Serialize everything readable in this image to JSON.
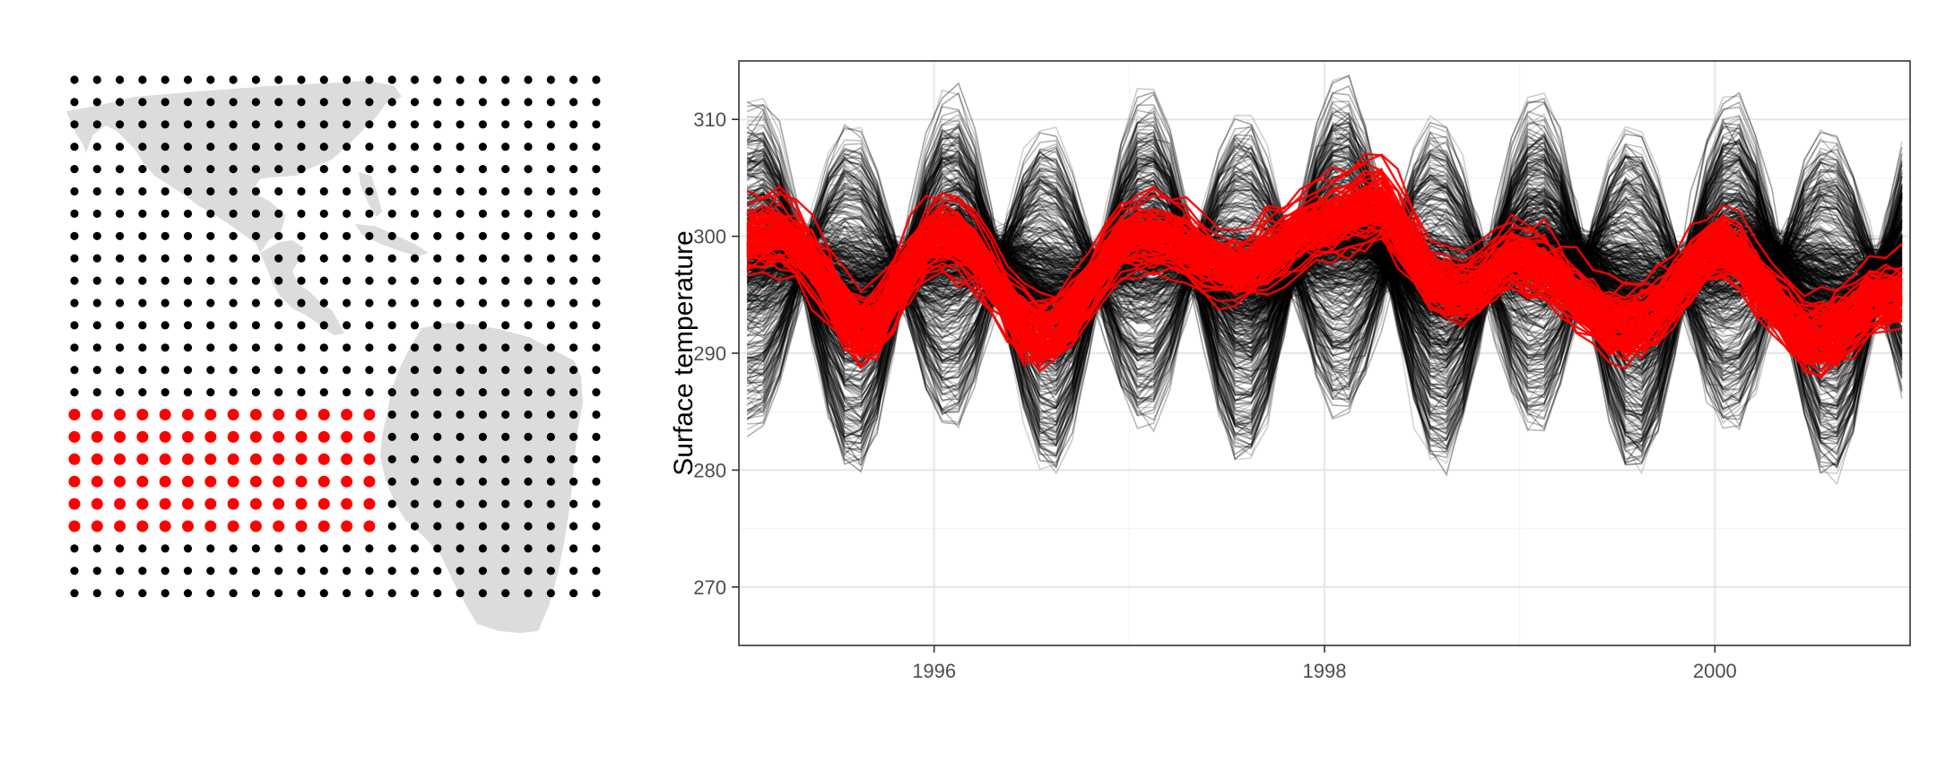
{
  "colors": {
    "background_series": "#000000",
    "highlight_series": "#ff0000",
    "land": "#dcdcdc",
    "grid": "#ebebeb",
    "panel_border": "#333333"
  },
  "chart_data": [
    {
      "type": "scatter",
      "description_role": "spatial grid of locations over the Americas",
      "grid_columns": 24,
      "grid_rows": 24,
      "highlight_region": {
        "col_range": [
          1,
          14
        ],
        "row_range": [
          15,
          20
        ]
      },
      "series": [
        {
          "role": "all-locations",
          "color": "#000000"
        },
        {
          "role": "selected-locations",
          "color": "#ff0000"
        }
      ]
    },
    {
      "type": "line",
      "title": "",
      "xlabel": "",
      "ylabel": "Surface temperature",
      "xlim": [
        1995.0,
        2001.0
      ],
      "ylim": [
        265,
        315
      ],
      "x_ticks": [
        1996,
        1998,
        2000
      ],
      "x_tick_labels": [
        "1996",
        "1998",
        "2000"
      ],
      "y_ticks": [
        270,
        280,
        290,
        300,
        310
      ],
      "y_tick_labels": [
        "270",
        "280",
        "290",
        "300",
        "310"
      ],
      "grid": true,
      "months": 72,
      "start": "1995-01",
      "series": [
        {
          "role": "all-locations",
          "color": "#000000",
          "count": 576,
          "monthly_mean": [
            299.0,
            299.3,
            299.6,
            299.5,
            298.9,
            298.0,
            297.2,
            296.8,
            297.0,
            297.8,
            298.6,
            299.0,
            299.3,
            299.5,
            299.6,
            299.4,
            298.8,
            297.9,
            297.1,
            296.7,
            296.9,
            297.7,
            298.5,
            299.0,
            299.4,
            299.6,
            299.8,
            299.7,
            299.2,
            298.5,
            297.9,
            297.7,
            298.1,
            299.0,
            299.8,
            300.2,
            300.4,
            300.5,
            300.4,
            300.1,
            299.5,
            298.6,
            297.8,
            297.3,
            297.4,
            298.0,
            298.7,
            299.0,
            299.2,
            299.3,
            299.4,
            299.2,
            298.7,
            297.8,
            297.0,
            296.5,
            296.7,
            297.4,
            298.2,
            298.7,
            299.0,
            299.3,
            299.4,
            299.2,
            298.6,
            297.7,
            296.9,
            296.5,
            296.7,
            297.5,
            298.3,
            298.8
          ],
          "seasonal_amplitude_range": [
            0.5,
            16
          ]
        },
        {
          "role": "selected-locations",
          "color": "#ff0000",
          "count": 84,
          "monthly_mean": [
            300.0,
            300.2,
            300.4,
            299.6,
            297.8,
            295.6,
            293.3,
            292.0,
            292.7,
            295.0,
            297.5,
            299.5,
            300.5,
            299.9,
            298.6,
            296.6,
            294.3,
            292.4,
            291.5,
            292.1,
            293.6,
            295.6,
            297.8,
            299.6,
            300.1,
            300.2,
            300.0,
            299.4,
            298.4,
            297.6,
            297.2,
            297.6,
            298.5,
            299.6,
            300.6,
            301.2,
            301.6,
            302.2,
            302.9,
            303.2,
            301.3,
            298.6,
            296.6,
            295.6,
            295.2,
            295.9,
            297.3,
            298.4,
            297.8,
            297.5,
            296.2,
            294.9,
            293.7,
            292.5,
            292.3,
            292.9,
            293.8,
            295.4,
            297.3,
            298.9,
            299.6,
            298.4,
            296.4,
            294.7,
            292.7,
            291.5,
            291.3,
            292.0,
            293.0,
            294.4,
            294.7,
            295.1
          ],
          "spread": 2.2
        }
      ]
    }
  ]
}
